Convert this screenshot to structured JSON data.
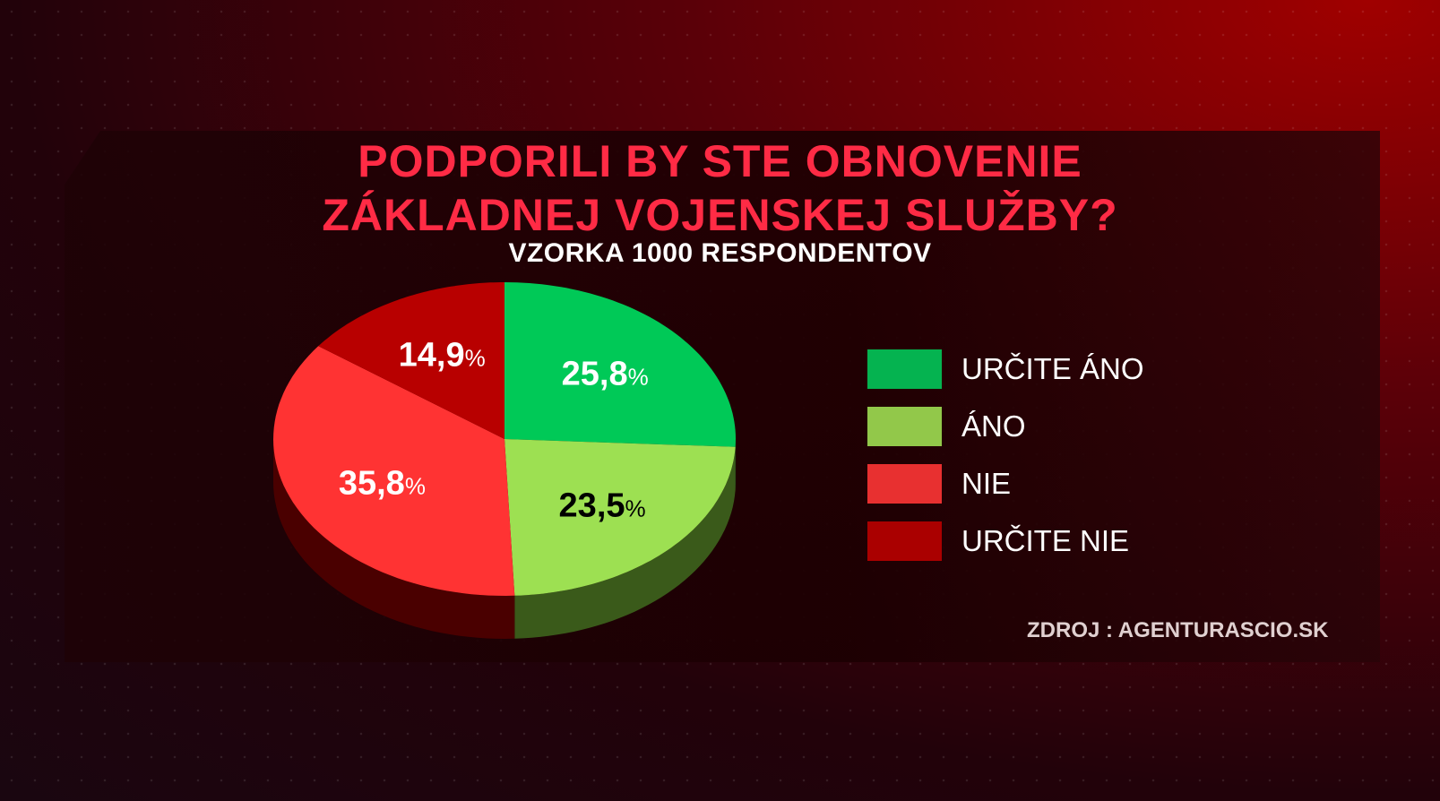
{
  "title_line1": "PODPORILI BY STE OBNOVENIE",
  "title_line2": "ZÁKLADNEJ VOJENSKEJ SLUŽBY?",
  "subtitle": "VZORKA 1000 RESPONDENTOV",
  "source": "ZDROJ : AGENTURASCIO.SK",
  "chart_data": {
    "type": "pie",
    "title": "PODPORILI BY STE OBNOVENIE ZÁKLADNEJ VOJENSKEJ SLUŽBY?",
    "subtitle": "VZORKA 1000 RESPONDENTOV",
    "style": "3d",
    "legend_position": "right",
    "slices": [
      {
        "label": "URČITE ÁNO",
        "value": 25.8,
        "display": "25,8",
        "color": "#00c957",
        "legend_color": "#05b350",
        "side_color": "#0a5a2a",
        "text_color": "#ffffff"
      },
      {
        "label": "ÁNO",
        "value": 23.5,
        "display": "23,5",
        "color": "#9de052",
        "legend_color": "#92c84a",
        "side_color": "#3a5a1a",
        "text_color": "#000000"
      },
      {
        "label": "NIE",
        "value": 35.8,
        "display": "35,8",
        "color": "#ff3333",
        "legend_color": "#e83030",
        "side_color": "#4a0000",
        "text_color": "#ffffff"
      },
      {
        "label": "URČITE NIE",
        "value": 14.9,
        "display": "14,9",
        "color": "#b80000",
        "legend_color": "#aa0000",
        "side_color": "#3a0000",
        "text_color": "#ffffff"
      }
    ],
    "percent_sign": "%"
  }
}
